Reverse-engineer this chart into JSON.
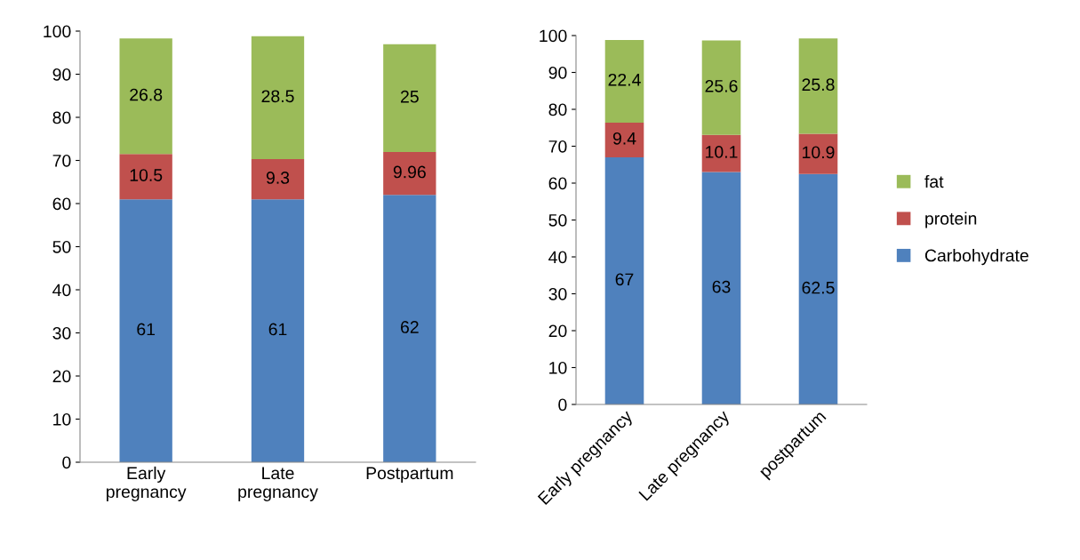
{
  "chart_data": [
    {
      "type": "bar",
      "stacked": true,
      "categories": [
        "Early\npregnancy",
        "Late\npregnancy",
        "Postpartum"
      ],
      "ylim": [
        0,
        100
      ],
      "yticks": [
        0,
        10,
        20,
        30,
        40,
        50,
        60,
        70,
        80,
        90,
        100
      ],
      "grid": false,
      "legend": false,
      "data_labels": true,
      "series": [
        {
          "color": "#4f81bd",
          "values": [
            61,
            61,
            62
          ]
        },
        {
          "color": "#c0504d",
          "values": [
            10.5,
            9.3,
            9.96
          ]
        },
        {
          "color": "#9bbb59",
          "values": [
            26.8,
            28.5,
            25
          ]
        }
      ]
    },
    {
      "type": "bar",
      "stacked": true,
      "categories": [
        "Early pregnancy",
        "Late pregnancy",
        "postpartum"
      ],
      "ylim": [
        0,
        100
      ],
      "yticks": [
        0,
        10,
        20,
        30,
        40,
        50,
        60,
        70,
        80,
        90,
        100
      ],
      "grid": false,
      "legend": "right",
      "data_labels": true,
      "series": [
        {
          "name": "Carbohydrate",
          "color": "#4f81bd",
          "values": [
            67,
            63,
            62.5
          ]
        },
        {
          "name": "protein",
          "color": "#c0504d",
          "values": [
            9.4,
            10.1,
            10.9
          ]
        },
        {
          "name": "fat",
          "color": "#9bbb59",
          "values": [
            22.4,
            25.6,
            25.8
          ]
        }
      ]
    }
  ]
}
